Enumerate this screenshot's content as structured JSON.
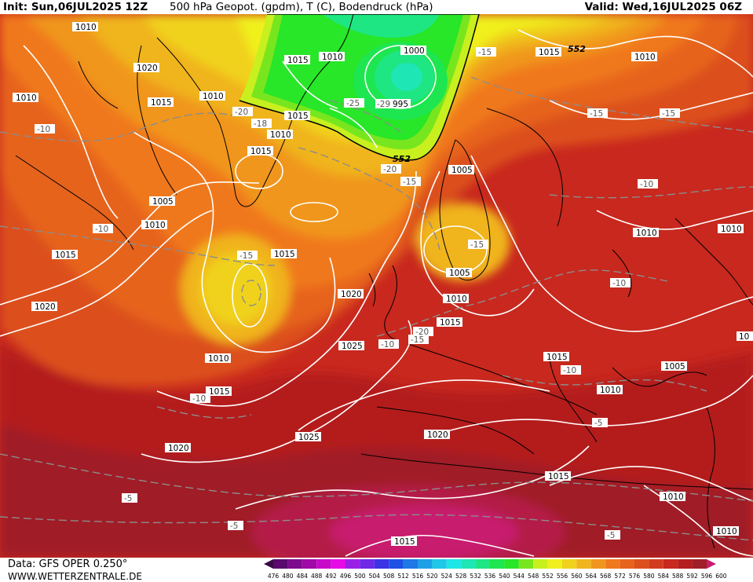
{
  "header": {
    "init": "Init: Sun,06JUL2025 12Z",
    "title": "500 hPa Geopot. (gpdm), T (C), Bodendruck (hPa)",
    "valid": "Valid: Wed,16JUL2025 06Z"
  },
  "footer": {
    "data_source": "Data: GFS OPER 0.250°",
    "website": "WWW.WETTERZENTRALE.DE"
  },
  "legend": {
    "values": [
      "476",
      "480",
      "484",
      "488",
      "492",
      "496",
      "500",
      "504",
      "508",
      "512",
      "516",
      "520",
      "524",
      "528",
      "532",
      "536",
      "540",
      "544",
      "548",
      "552",
      "556",
      "560",
      "564",
      "568",
      "572",
      "576",
      "580",
      "584",
      "588",
      "592",
      "596",
      "600"
    ],
    "colors": [
      "#3c0a46",
      "#5a0a6e",
      "#7d0a8c",
      "#a00aa8",
      "#c80ac8",
      "#e60ae6",
      "#9b1ee6",
      "#6e28e6",
      "#3c32e6",
      "#1e50e6",
      "#1e78e6",
      "#1ea0e6",
      "#1ec8e6",
      "#1ee6e6",
      "#1ee6b4",
      "#1ee682",
      "#1ee650",
      "#28e628",
      "#78e61e",
      "#c8f01e",
      "#f0f01e",
      "#f0d21e",
      "#f0b41e",
      "#f0961e",
      "#f0781e",
      "#e6641e",
      "#dc501e",
      "#d23c1e",
      "#c8281e",
      "#b41e1e",
      "#a01e28",
      "#c81e6e"
    ]
  },
  "pressure_labels": [
    {
      "text": "1010"
    },
    {
      "text": "1020"
    },
    {
      "text": "1010"
    },
    {
      "text": "1015"
    },
    {
      "text": "1010"
    },
    {
      "text": "1015"
    },
    {
      "text": "1010"
    },
    {
      "text": "1000"
    },
    {
      "text": "995"
    },
    {
      "text": "1015"
    },
    {
      "text": "1010"
    },
    {
      "text": "1015"
    },
    {
      "text": "1015"
    },
    {
      "text": "1010"
    },
    {
      "text": "1005"
    },
    {
      "text": "1010"
    },
    {
      "text": "1015"
    },
    {
      "text": "1015"
    },
    {
      "text": "1005"
    },
    {
      "text": "1005"
    },
    {
      "text": "1010"
    },
    {
      "text": "1010"
    },
    {
      "text": "1020"
    },
    {
      "text": "1020"
    },
    {
      "text": "1015"
    },
    {
      "text": "1025"
    },
    {
      "text": "1010"
    },
    {
      "text": "1015"
    },
    {
      "text": "1015"
    },
    {
      "text": "1010"
    },
    {
      "text": "1005"
    },
    {
      "text": "1025"
    },
    {
      "text": "1020"
    },
    {
      "text": "1020"
    },
    {
      "text": "1015"
    },
    {
      "text": "1010"
    },
    {
      "text": "1015"
    },
    {
      "text": "1010"
    },
    {
      "text": "1010"
    },
    {
      "text": "10"
    }
  ],
  "temperature_labels": [
    {
      "text": "-10"
    },
    {
      "text": "-20"
    },
    {
      "text": "-18"
    },
    {
      "text": "-25"
    },
    {
      "text": "-29"
    },
    {
      "text": "-15"
    },
    {
      "text": "-15"
    },
    {
      "text": "-10"
    },
    {
      "text": "-15"
    },
    {
      "text": "-20"
    },
    {
      "text": "-15"
    },
    {
      "text": "-15"
    },
    {
      "text": "-15"
    },
    {
      "text": "-10"
    },
    {
      "text": "-10"
    },
    {
      "text": "-20"
    },
    {
      "text": "-15"
    },
    {
      "text": "-10"
    },
    {
      "text": "-10"
    },
    {
      "text": "-10"
    },
    {
      "text": "-5"
    },
    {
      "text": "-5"
    },
    {
      "text": "-5"
    },
    {
      "text": "-5"
    }
  ],
  "geopotential_labels": [
    {
      "text": "552"
    },
    {
      "text": "552"
    }
  ]
}
